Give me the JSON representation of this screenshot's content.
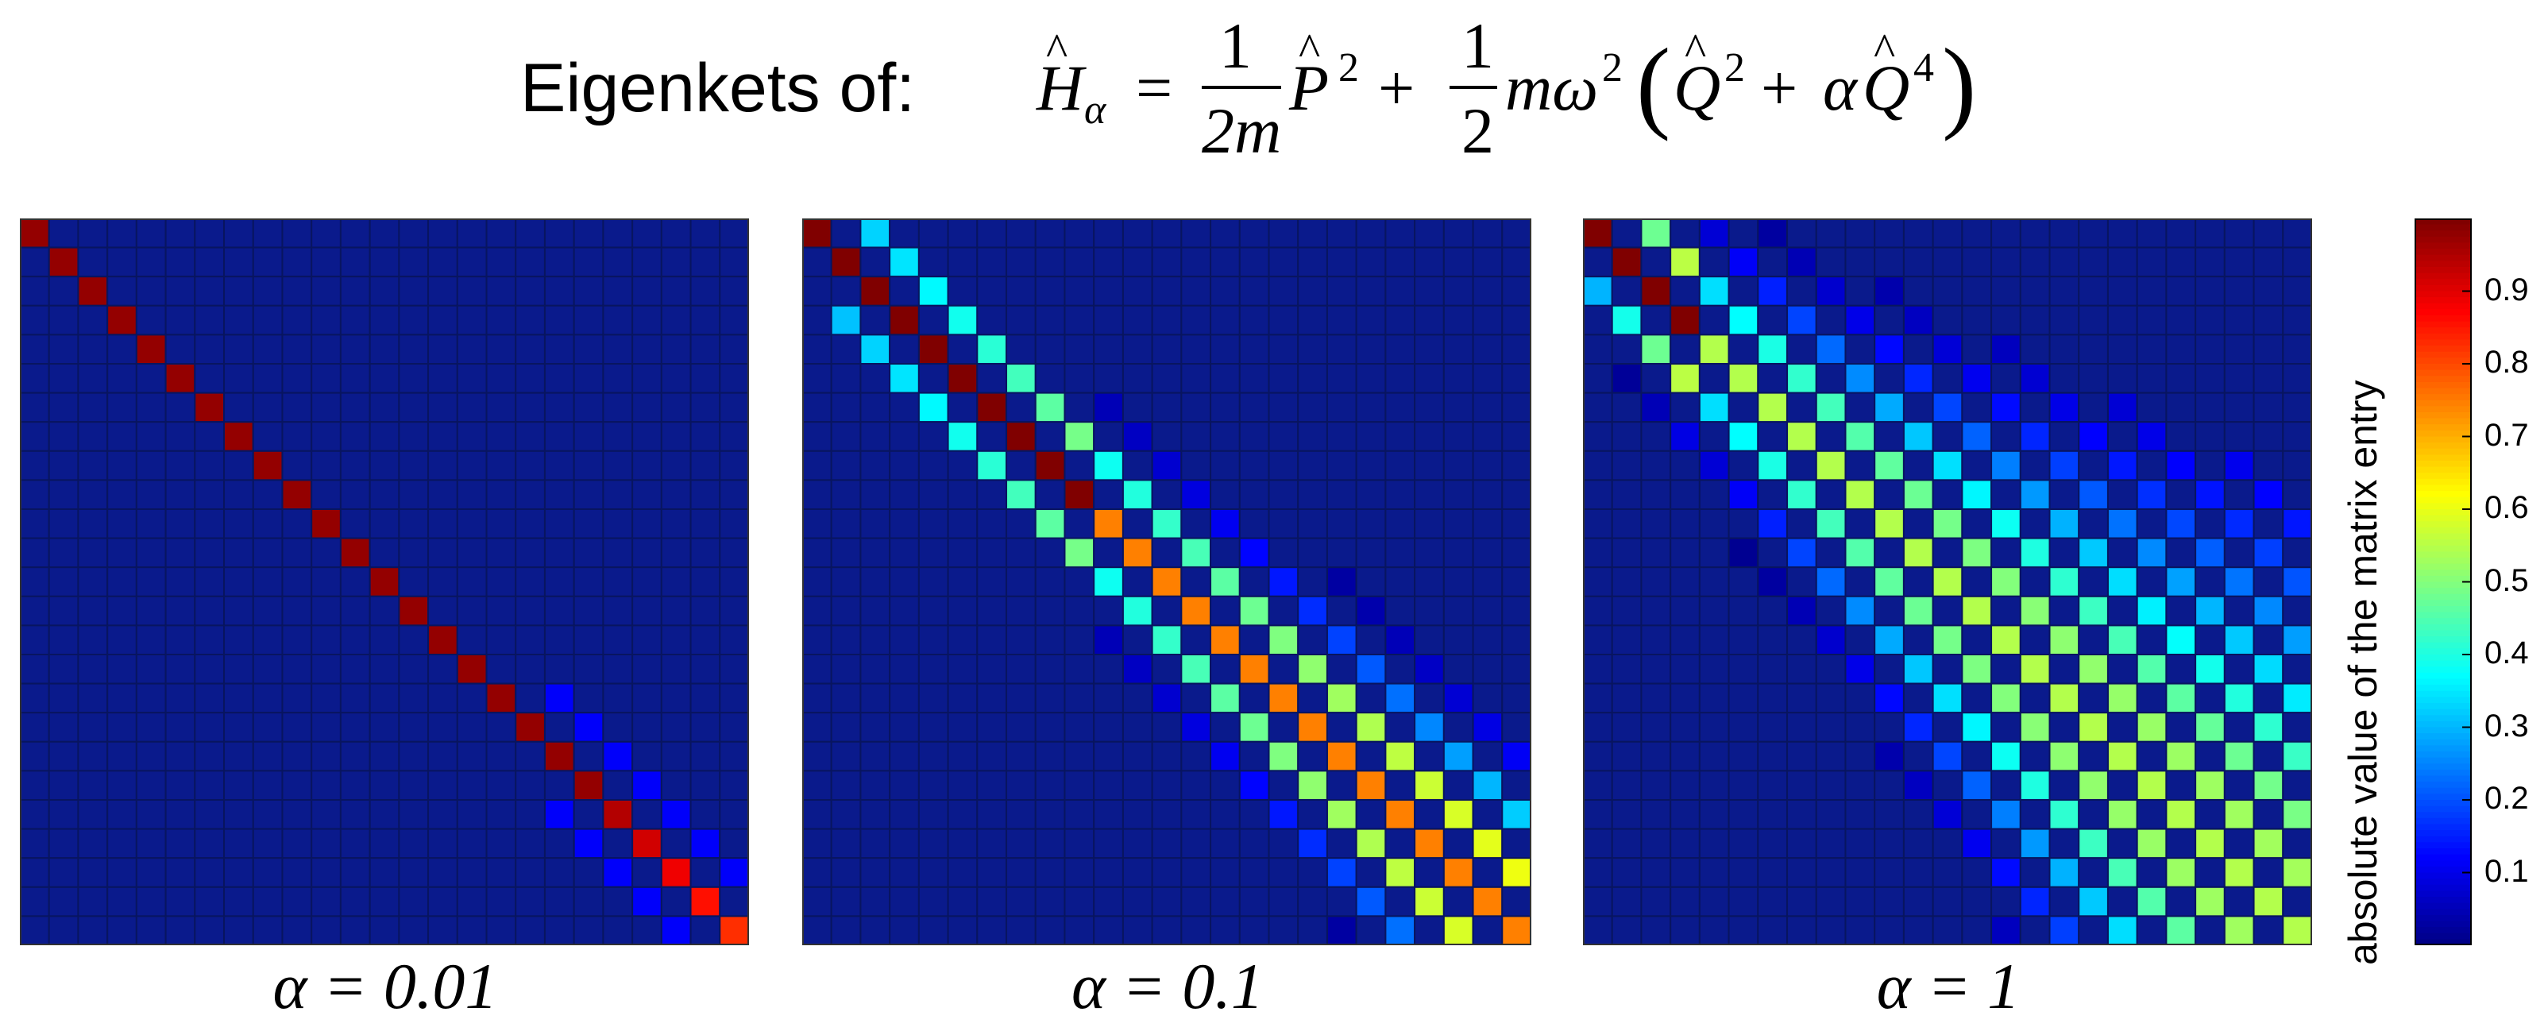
{
  "title": {
    "prefix": "Eigenkets of:",
    "formula_text": "Ĥα = (1/2m) P̂² + (1/2) mω² (Q̂² + αQ̂⁴)"
  },
  "chart_data": [
    {
      "type": "heatmap",
      "label": "α = 0.01",
      "alpha": 0.01,
      "matrix_size": 25,
      "description_values": "near-diagonal matrix of |entries|"
    },
    {
      "type": "heatmap",
      "label": "α = 0.1",
      "alpha": 0.1,
      "matrix_size": 25
    },
    {
      "type": "heatmap",
      "label": "α = 1",
      "alpha": 1,
      "matrix_size": 25
    }
  ],
  "colorbar": {
    "label": "absolute value of the matrix entry",
    "ticks": [
      "0.1",
      "0.2",
      "0.3",
      "0.4",
      "0.5",
      "0.6",
      "0.7",
      "0.8",
      "0.9"
    ],
    "range": [
      0,
      1
    ],
    "colormap": "jet"
  }
}
